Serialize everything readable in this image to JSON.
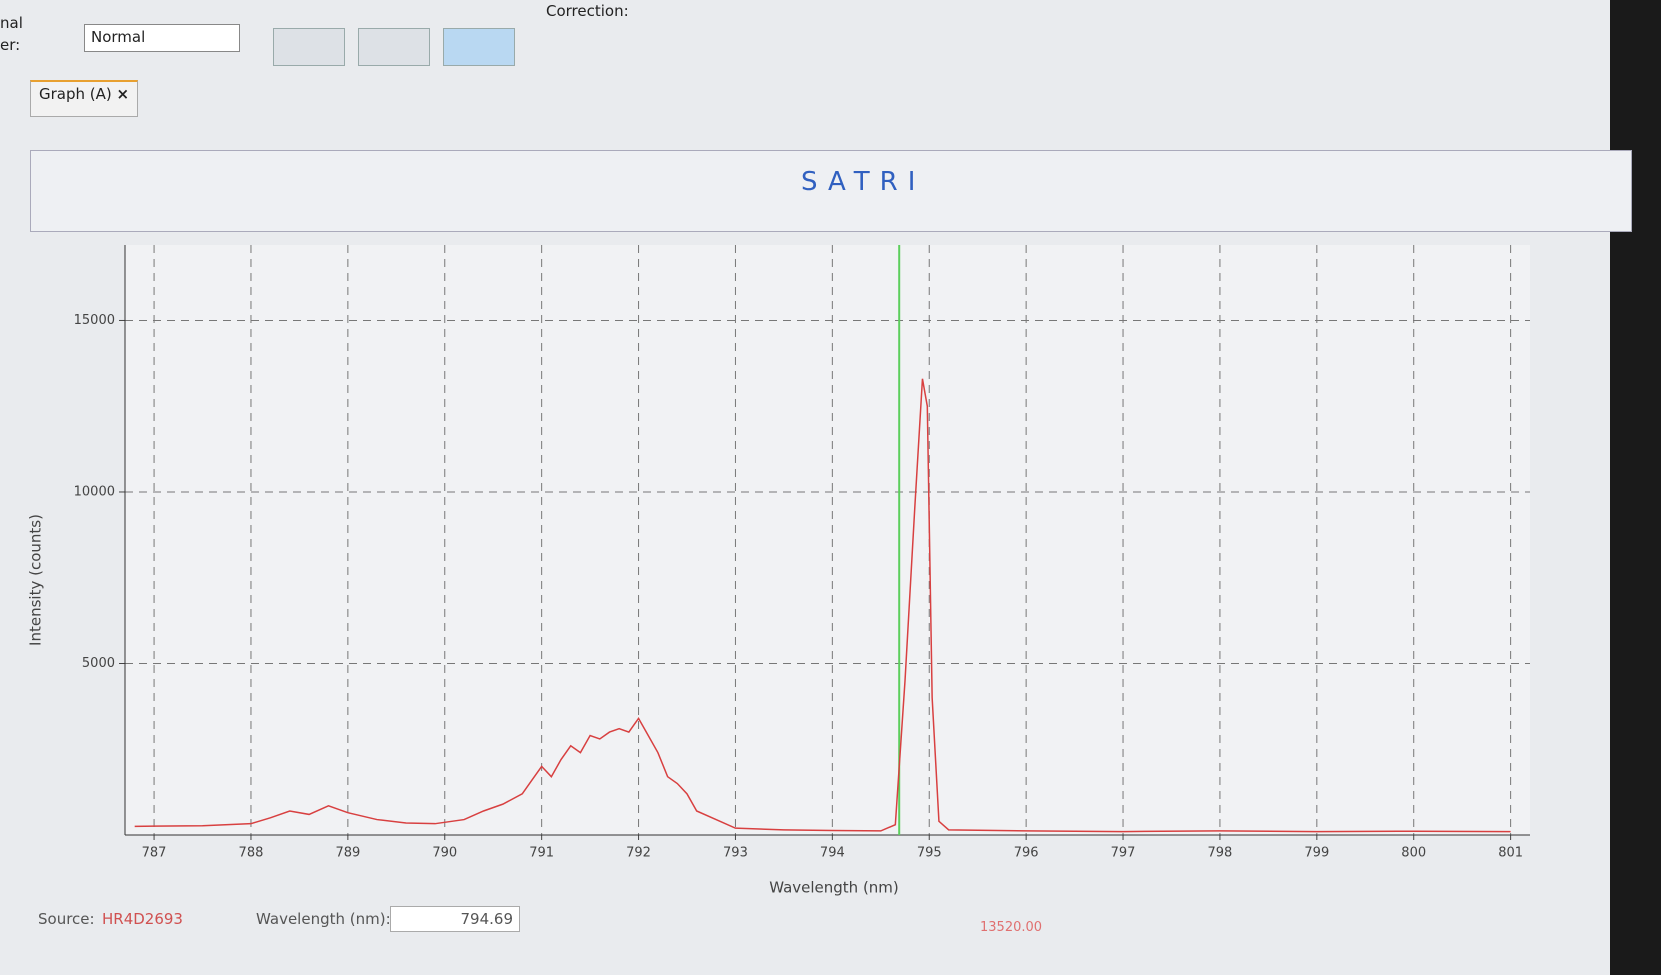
{
  "ui": {
    "mode_label_top": "nal",
    "mode_label_bottom": "er:",
    "mode_select": "Normal",
    "correction_label": "Correction:",
    "tab_title": "Graph (A)",
    "tab_close": "×",
    "toolbar_letters": [
      "S",
      "A",
      "T",
      "R",
      "I"
    ],
    "source_label": "Source:",
    "source_value": "HR4D2693",
    "wavelength_label": "Wavelength (nm):",
    "cursor_intensity": "13520.00"
  },
  "chart_data": {
    "type": "line",
    "x_label": "Wavelength (nm)",
    "y_label": "Intensity (counts)",
    "xlim": [
      786.7,
      801.2
    ],
    "xticks": [
      787,
      788,
      789,
      790,
      791,
      792,
      793,
      794,
      795,
      796,
      797,
      798,
      799,
      800,
      801
    ],
    "ylim": [
      0,
      17200
    ],
    "yticks": [
      5000,
      10000,
      15000
    ],
    "grid": true,
    "cursor": 794.69,
    "cursor_color": "#5ccf5c",
    "series": [
      {
        "name": "HR4D2693",
        "color": "#d84040",
        "x": [
          786.8,
          787.0,
          787.5,
          788.0,
          788.2,
          788.4,
          788.6,
          788.8,
          789.0,
          789.3,
          789.6,
          789.9,
          790.2,
          790.4,
          790.6,
          790.8,
          790.9,
          791.0,
          791.1,
          791.2,
          791.3,
          791.4,
          791.5,
          791.6,
          791.7,
          791.8,
          791.9,
          792.0,
          792.1,
          792.2,
          792.3,
          792.4,
          792.5,
          792.6,
          792.8,
          793.0,
          793.5,
          794.0,
          794.5,
          794.65,
          794.75,
          794.85,
          794.93,
          794.98,
          795.03,
          795.1,
          795.2,
          796,
          797,
          798,
          799,
          800,
          801
        ],
        "values": [
          250,
          260,
          270,
          330,
          500,
          700,
          600,
          850,
          650,
          450,
          350,
          330,
          450,
          700,
          900,
          1200,
          1600,
          2000,
          1700,
          2200,
          2600,
          2400,
          2900,
          2800,
          3000,
          3100,
          3000,
          3400,
          2900,
          2400,
          1700,
          1500,
          1200,
          700,
          450,
          200,
          150,
          130,
          120,
          300,
          4500,
          9500,
          13300,
          12500,
          4000,
          400,
          150,
          120,
          100,
          120,
          100,
          110,
          100
        ]
      }
    ]
  }
}
